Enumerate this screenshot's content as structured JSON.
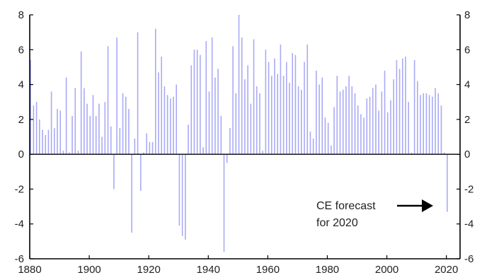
{
  "chart_data": {
    "type": "bar",
    "title": "",
    "xlabel": "",
    "ylabel": "",
    "xlim": [
      1880,
      2021
    ],
    "ylim": [
      -6,
      8
    ],
    "x_ticks": [
      "1880",
      "1900",
      "1920",
      "1940",
      "1960",
      "1980",
      "2000",
      "2020"
    ],
    "y_ticks_left": [
      "8",
      "6",
      "4",
      "2",
      "0",
      "-2",
      "-4",
      "-6"
    ],
    "y_ticks_right": [
      "8",
      "6",
      "4",
      "2",
      "0",
      "-2",
      "-4",
      "-6"
    ],
    "grid": false,
    "bar_color": "#a9aaf5",
    "series": [
      {
        "x": [
          1880,
          1881,
          1882,
          1883,
          1884,
          1885,
          1886,
          1887,
          1888,
          1889,
          1890,
          1891,
          1892,
          1893,
          1894,
          1895,
          1896,
          1897,
          1898,
          1899,
          1900,
          1901,
          1902,
          1903,
          1904,
          1905,
          1906,
          1907,
          1908,
          1909,
          1910,
          1911,
          1912,
          1913,
          1914,
          1915,
          1916,
          1917,
          1918,
          1919,
          1920,
          1921,
          1922,
          1923,
          1924,
          1925,
          1926,
          1927,
          1928,
          1929,
          1930,
          1931,
          1932,
          1933,
          1934,
          1935,
          1936,
          1937,
          1938,
          1939,
          1940,
          1941,
          1942,
          1943,
          1944,
          1945,
          1946,
          1947,
          1948,
          1949,
          1950,
          1951,
          1952,
          1953,
          1954,
          1955,
          1956,
          1957,
          1958,
          1959,
          1960,
          1961,
          1962,
          1963,
          1964,
          1965,
          1966,
          1967,
          1968,
          1969,
          1970,
          1971,
          1972,
          1973,
          1974,
          1975,
          1976,
          1977,
          1978,
          1979,
          1980,
          1981,
          1982,
          1983,
          1984,
          1985,
          1986,
          1987,
          1988,
          1989,
          1990,
          1991,
          1992,
          1993,
          1994,
          1995,
          1996,
          1997,
          1998,
          1999,
          2000,
          2001,
          2002,
          2003,
          2004,
          2005,
          2006,
          2007,
          2008,
          2009,
          2010,
          2011,
          2012,
          2013,
          2014,
          2015,
          2016,
          2017,
          2018,
          2019,
          2020
        ],
        "values": [
          5.4,
          2.8,
          3.0,
          2.0,
          1.4,
          1.1,
          1.4,
          3.6,
          1.5,
          2.6,
          2.5,
          0.2,
          4.4,
          0.1,
          2.2,
          3.8,
          0.2,
          5.9,
          3.8,
          2.9,
          2.2,
          3.4,
          2.2,
          2.9,
          1.0,
          3.0,
          6.2,
          1.6,
          -2.0,
          6.7,
          1.5,
          3.5,
          3.3,
          2.6,
          -4.5,
          0.9,
          7.0,
          -2.1,
          0.1,
          1.2,
          0.7,
          0.7,
          7.2,
          4.7,
          5.6,
          3.9,
          3.4,
          3.2,
          3.3,
          4.0,
          -4.1,
          -4.7,
          -4.9,
          1.7,
          5.1,
          6.0,
          6.0,
          5.7,
          0.4,
          6.5,
          3.6,
          6.7,
          4.4,
          4.9,
          2.2,
          -5.6,
          -0.5,
          1.5,
          6.2,
          3.5,
          8.0,
          6.7,
          4.3,
          5.1,
          2.9,
          6.6,
          3.9,
          3.5,
          0.2,
          6.0,
          5.3,
          4.5,
          5.5,
          4.6,
          6.3,
          4.5,
          5.3,
          4.1,
          5.8,
          5.7,
          3.9,
          3.7,
          5.3,
          6.3,
          1.3,
          0.9,
          4.8,
          4.0,
          4.4,
          2.1,
          1.8,
          0.5,
          2.7,
          4.5,
          3.6,
          3.7,
          3.9,
          4.5,
          3.9,
          3.5,
          2.8,
          2.3,
          2.1,
          3.2,
          3.3,
          3.8,
          4.0,
          2.5,
          3.6,
          4.8,
          2.4,
          3.1,
          4.3,
          5.4,
          4.9,
          5.5,
          5.6,
          3.0,
          0.1,
          5.4,
          4.2,
          3.4,
          3.5,
          3.5,
          3.4,
          3.3,
          3.8,
          3.5,
          2.8,
          0.1,
          -3.3
        ]
      }
    ],
    "annotations": [
      {
        "text_line1": "CE forecast",
        "text_line2": "for 2020",
        "arrow_to": 2020
      }
    ]
  }
}
